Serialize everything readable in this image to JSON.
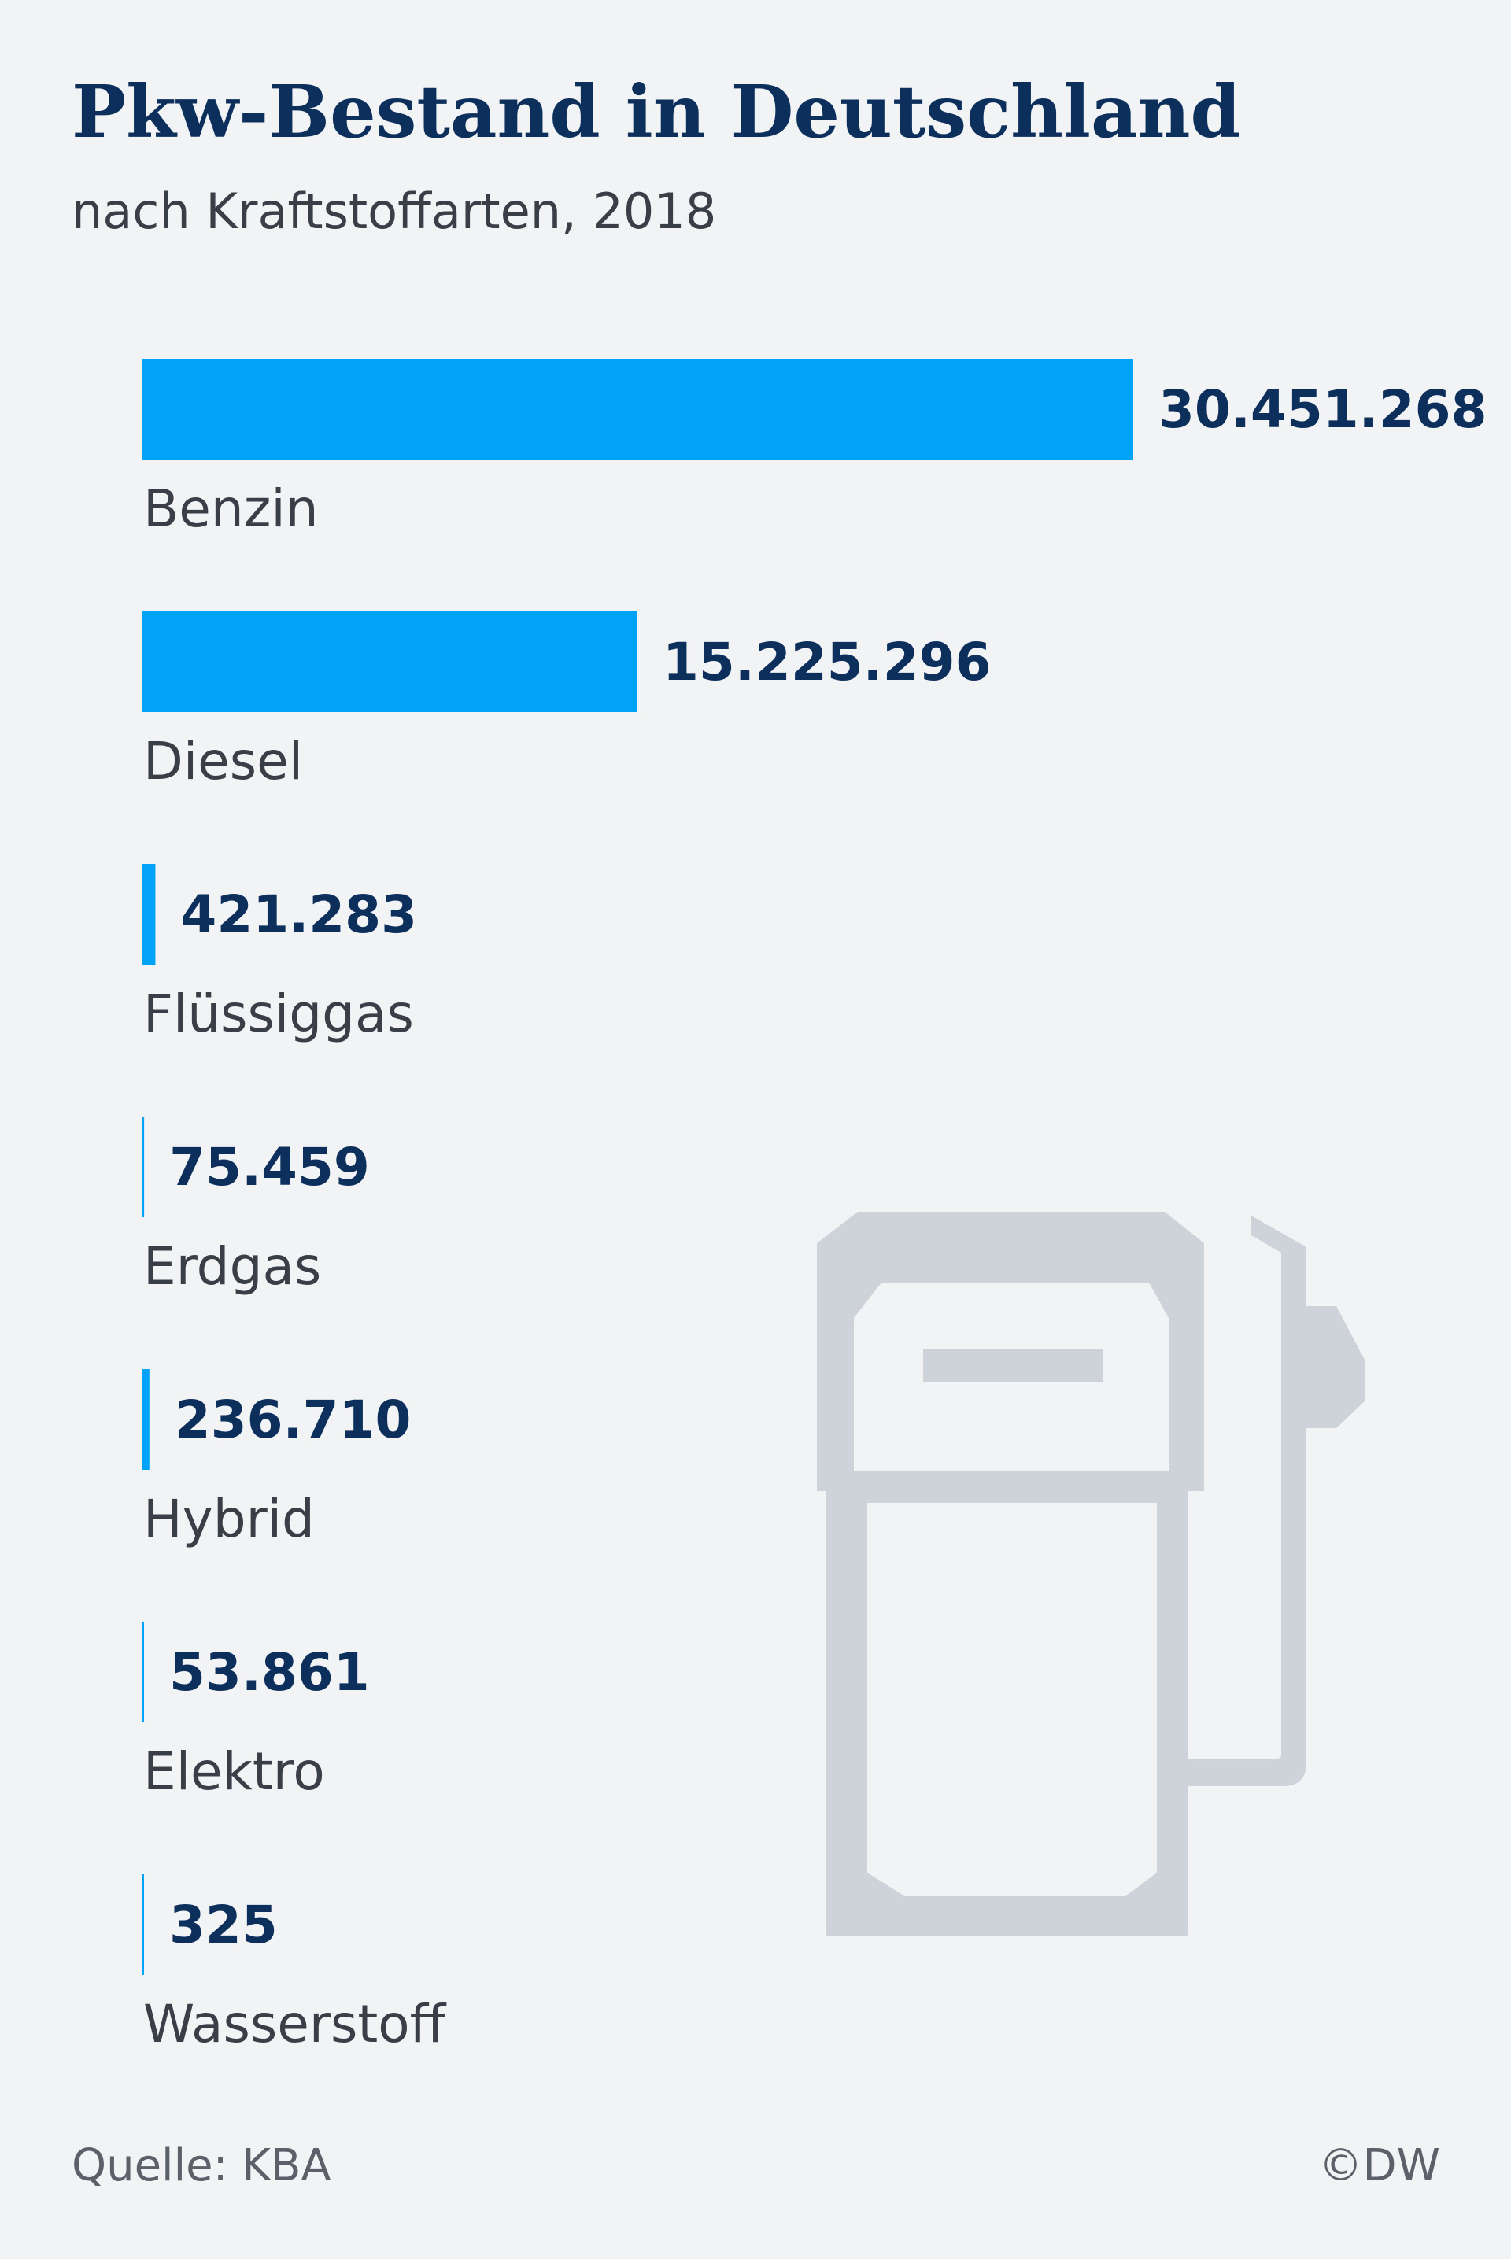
{
  "title": "Pkw-Bestand in Deutschland",
  "subtitle": "nach Kraftstoffarten, 2018",
  "source": "Quelle: KBA",
  "credit": "©DW",
  "colors": {
    "bar": "#00a3f7",
    "value_text": "#0c2f5c",
    "pump_icon": "#cdd3d9"
  },
  "icons": [
    "fuel-pump-icon"
  ],
  "chart_data": {
    "type": "bar",
    "orientation": "horizontal",
    "categories": [
      "Benzin",
      "Diesel",
      "Flüssiggas",
      "Erdgas",
      "Hybrid",
      "Elektro",
      "Wasserstoff"
    ],
    "values": [
      30451268,
      15225296,
      421283,
      75459,
      236710,
      53861,
      325
    ],
    "value_labels": [
      "30.451.268",
      "15.225.296",
      "421.283",
      "75.459",
      "236.710",
      "53.861",
      "325"
    ],
    "title": "Pkw-Bestand in Deutschland",
    "subtitle": "nach Kraftstoffarten, 2018",
    "xlabel": "",
    "ylabel": "",
    "grid": false,
    "legend": "none"
  }
}
